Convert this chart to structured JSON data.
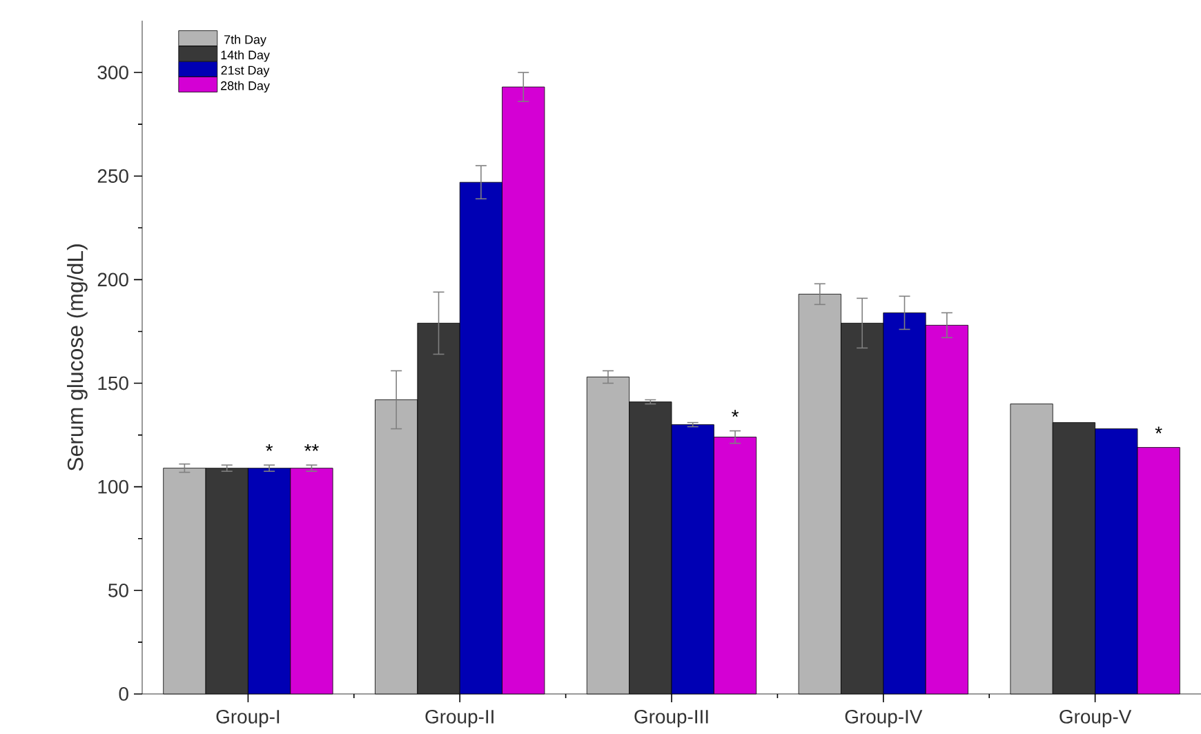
{
  "chart_data": {
    "type": "bar",
    "ylabel": "Serum  glucose (mg/dL)",
    "categories": [
      "Group-I",
      "Group-II",
      "Group-III",
      "Group-IV",
      "Group-V"
    ],
    "series": [
      {
        "name": "7th Day",
        "color": "#b4b4b4",
        "values": [
          109,
          142,
          153,
          193,
          140
        ],
        "errors": [
          2,
          14,
          3,
          5,
          null
        ]
      },
      {
        "name": "14th Day",
        "color": "#383838",
        "values": [
          109,
          179,
          141,
          179,
          131
        ],
        "errors": [
          1.5,
          15,
          1,
          12,
          null
        ]
      },
      {
        "name": "21st Day",
        "color": "#0000b4",
        "values": [
          109,
          247,
          130,
          184,
          128
        ],
        "errors": [
          1.5,
          8,
          1,
          8,
          null
        ],
        "value_labels": [
          "*",
          null,
          null,
          null,
          null
        ]
      },
      {
        "name": "28th Day",
        "color": "#d400d4",
        "values": [
          109,
          293,
          124,
          178,
          119
        ],
        "errors": [
          1.5,
          7,
          3,
          6,
          null
        ],
        "value_labels": [
          "**",
          null,
          "*",
          null,
          "*"
        ]
      }
    ],
    "ylim": [
      0,
      325
    ],
    "yticks": [
      0,
      50,
      100,
      150,
      200,
      250,
      300
    ],
    "legend": "top left",
    "grid": false
  }
}
